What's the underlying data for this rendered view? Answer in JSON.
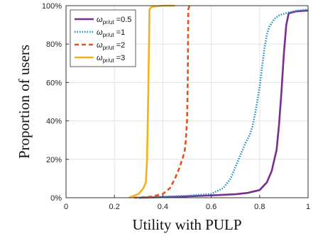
{
  "chart_data": {
    "type": "line",
    "xlabel": "Utility with PULP",
    "ylabel": "Proportion of users",
    "xlim": [
      0,
      1
    ],
    "ylim": [
      0,
      100
    ],
    "x_ticks": [
      "0",
      "0.2",
      "0.4",
      "0.6",
      "0.8",
      "1"
    ],
    "y_ticks": [
      "0%",
      "20%",
      "40%",
      "60%",
      "80%",
      "100%"
    ],
    "grid": true,
    "legend_position": "top-left",
    "legend_symbol": "ω",
    "legend_subscript": "pr/ut",
    "series": [
      {
        "name": "=0.5",
        "color": "#7B2D8E",
        "style": "solid",
        "x": [
          0.3,
          0.4,
          0.5,
          0.6,
          0.7,
          0.75,
          0.8,
          0.83,
          0.85,
          0.87,
          0.88,
          0.89,
          0.9,
          0.91,
          0.92,
          0.95,
          1.0
        ],
        "y": [
          0,
          0.3,
          0.7,
          1.2,
          1.8,
          2.5,
          4,
          8,
          14,
          25,
          38,
          55,
          75,
          90,
          96,
          97,
          97.5
        ]
      },
      {
        "name": "=1",
        "color": "#1E8FCB",
        "style": "dotted",
        "x": [
          0.3,
          0.4,
          0.5,
          0.6,
          0.65,
          0.68,
          0.7,
          0.72,
          0.74,
          0.76,
          0.77,
          0.78,
          0.79,
          0.8,
          0.81,
          0.82,
          0.83,
          0.84,
          0.86,
          0.88,
          0.92,
          0.96,
          1.0
        ],
        "y": [
          0,
          0.5,
          1,
          2,
          5,
          10,
          16,
          22,
          28,
          33,
          37,
          43,
          50,
          58,
          68,
          78,
          85,
          89,
          93,
          95,
          96.5,
          97.5,
          98
        ]
      },
      {
        "name": "=2",
        "color": "#E0541B",
        "style": "dashed",
        "x": [
          0.28,
          0.35,
          0.4,
          0.43,
          0.45,
          0.47,
          0.48,
          0.49,
          0.495,
          0.5,
          0.503,
          0.505,
          0.51
        ],
        "y": [
          0,
          0.5,
          2,
          5,
          10,
          16,
          20,
          24,
          30,
          40,
          60,
          98,
          100
        ]
      },
      {
        "name": "=3",
        "color": "#F2B21B",
        "style": "solid",
        "x": [
          0.26,
          0.3,
          0.32,
          0.33,
          0.335,
          0.34,
          0.345,
          0.35,
          0.36,
          0.4,
          0.45
        ],
        "y": [
          0,
          2,
          5,
          8,
          20,
          55,
          98,
          99,
          99.5,
          100,
          100
        ]
      }
    ]
  }
}
